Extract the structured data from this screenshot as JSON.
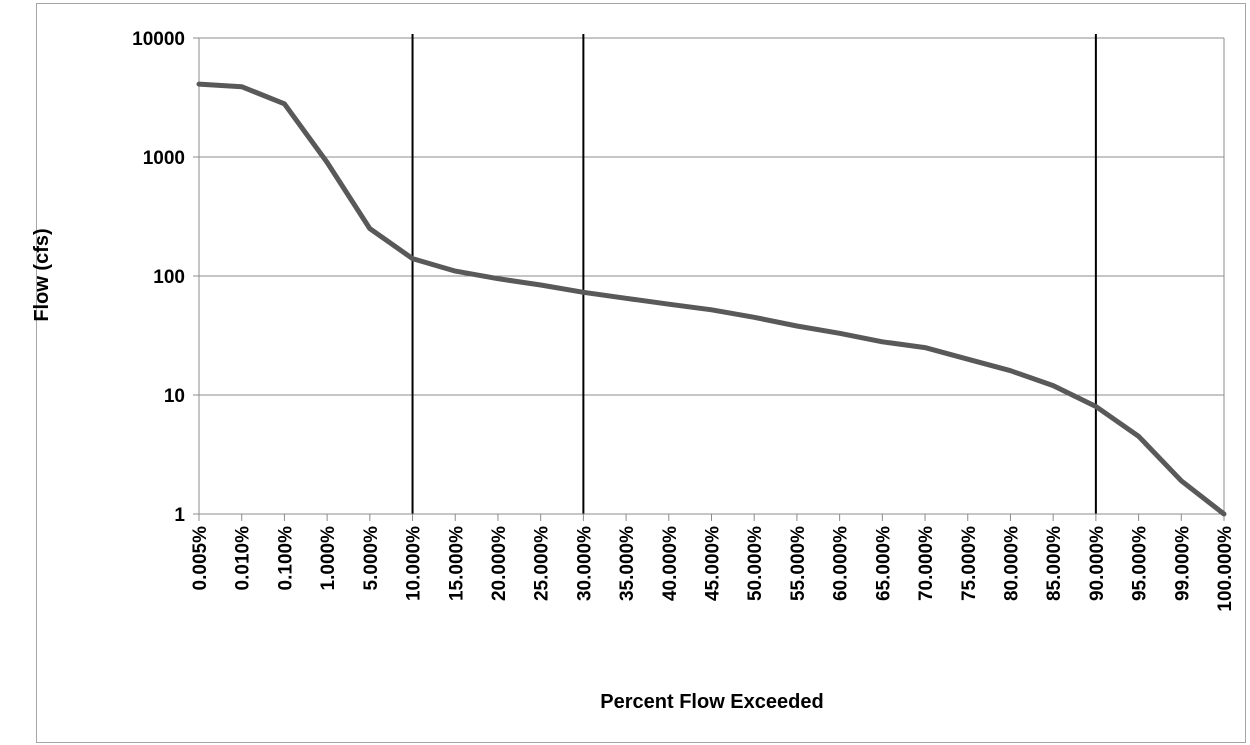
{
  "chart_data": {
    "type": "line",
    "title": "",
    "xlabel": "Percent Flow Exceeded",
    "ylabel": "Flow (cfs)",
    "yscale": "log",
    "ylim": [
      1,
      10000
    ],
    "yticks": [
      "1",
      "10",
      "100",
      "1000",
      "10000"
    ],
    "grid": true,
    "legend": "none",
    "categories": [
      "0.005%",
      "0.010%",
      "0.100%",
      "1.000%",
      "5.000%",
      "10.000%",
      "15.000%",
      "20.000%",
      "25.000%",
      "30.000%",
      "35.000%",
      "40.000%",
      "45.000%",
      "50.000%",
      "55.000%",
      "60.000%",
      "65.000%",
      "70.000%",
      "75.000%",
      "80.000%",
      "85.000%",
      "90.000%",
      "95.000%",
      "99.000%",
      "100.000%"
    ],
    "series": [
      {
        "color": "#595959",
        "values": [
          4100,
          3900,
          2800,
          900,
          250,
          140,
          110,
          95,
          84,
          73,
          65,
          58,
          52,
          45,
          38,
          33,
          28,
          25,
          20,
          16,
          12,
          8,
          4.5,
          1.9,
          1.0
        ]
      }
    ],
    "reference_lines": [
      "10.000%",
      "30.000%",
      "90.000%"
    ]
  }
}
